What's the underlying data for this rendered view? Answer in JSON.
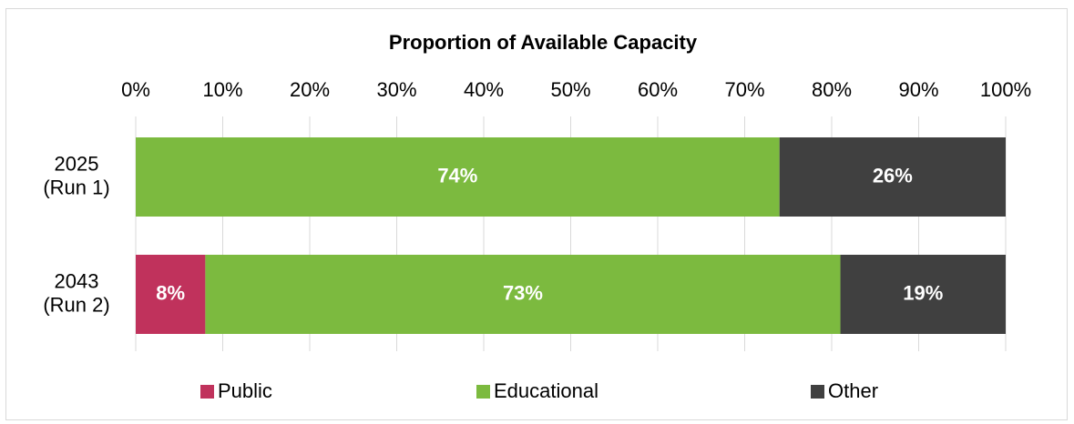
{
  "chart_data": {
    "type": "stacked-bar",
    "orientation": "horizontal",
    "title": "Proportion of Available Capacity",
    "categories": [
      "2025\n(Run 1)",
      "2043\n(Run 2)"
    ],
    "series": [
      {
        "name": "Public",
        "color": "#c0325c",
        "values": [
          null,
          8
        ],
        "value_labels": [
          null,
          "8%"
        ]
      },
      {
        "name": "Educational",
        "color": "#7cba3f",
        "values": [
          74,
          73
        ],
        "value_labels": [
          "74%",
          "73%"
        ]
      },
      {
        "name": "Other",
        "color": "#404040",
        "values": [
          26,
          19
        ],
        "value_labels": [
          "26%",
          "19%"
        ]
      }
    ],
    "xlim": [
      0,
      100
    ],
    "xticks": [
      {
        "value": 0,
        "label": "0%"
      },
      {
        "value": 10,
        "label": "10%"
      },
      {
        "value": 20,
        "label": "20%"
      },
      {
        "value": 30,
        "label": "30%"
      },
      {
        "value": 40,
        "label": "40%"
      },
      {
        "value": 50,
        "label": "50%"
      },
      {
        "value": 60,
        "label": "60%"
      },
      {
        "value": 70,
        "label": "70%"
      },
      {
        "value": 80,
        "label": "80%"
      },
      {
        "value": 90,
        "label": "90%"
      },
      {
        "value": 100,
        "label": "100%"
      }
    ],
    "grid": true,
    "legend": "bottom"
  }
}
